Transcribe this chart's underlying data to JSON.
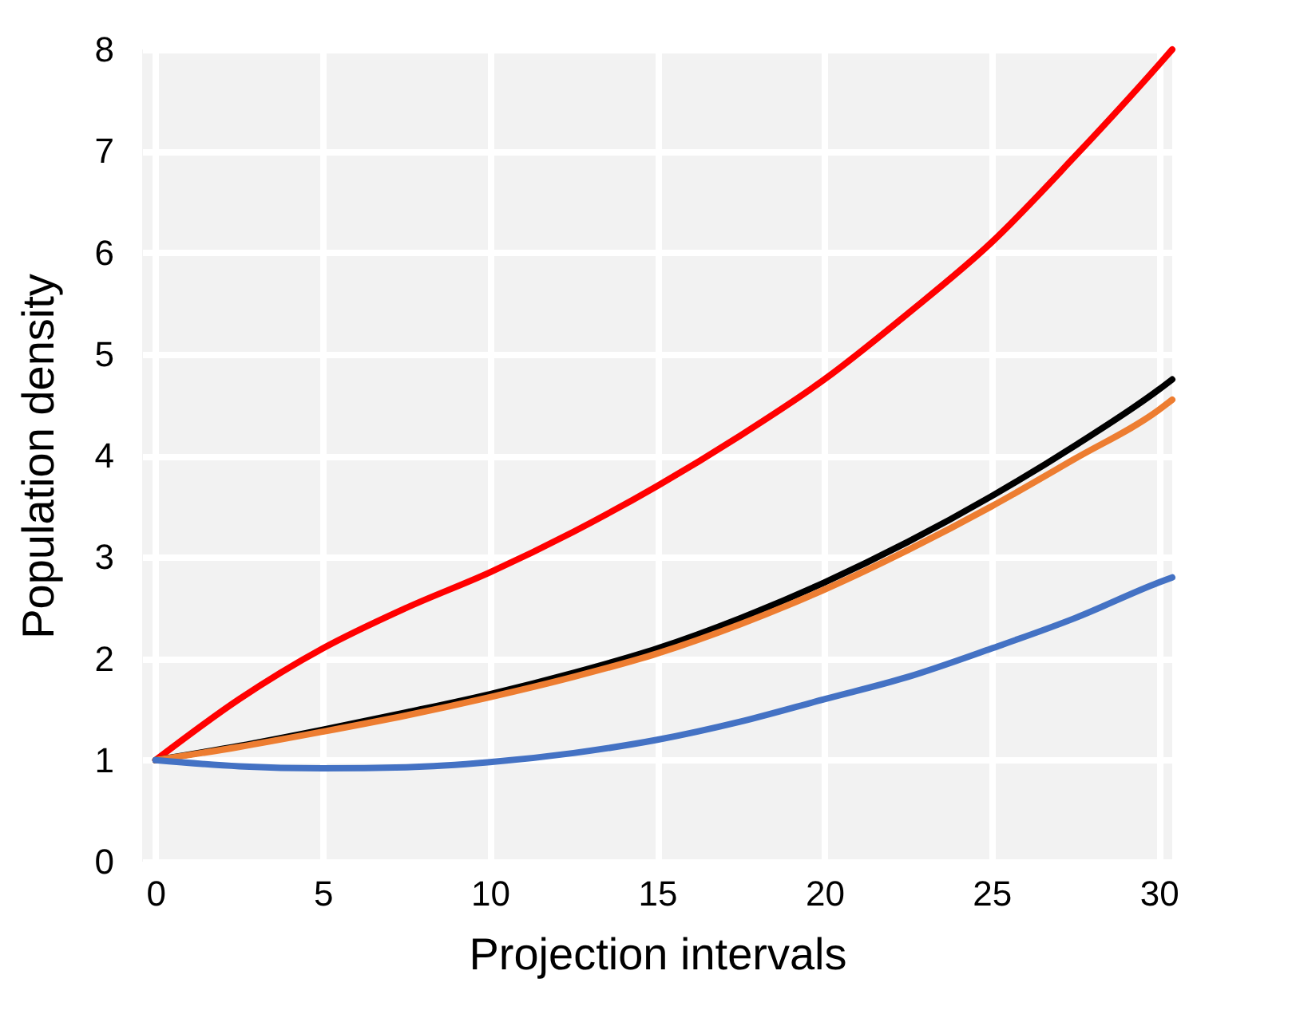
{
  "chart_data": {
    "type": "line",
    "xlabel": "Projection intervals",
    "ylabel": "Population density",
    "xlim": [
      -0.4,
      30.4
    ],
    "ylim": [
      0,
      8
    ],
    "xticks": [
      0,
      5,
      10,
      15,
      20,
      25,
      30
    ],
    "yticks": [
      0,
      1,
      2,
      3,
      4,
      5,
      6,
      7,
      8
    ],
    "grid": true,
    "marker": "none",
    "line_style": "solid",
    "x": [
      0,
      2.5,
      5,
      7.5,
      10,
      12.5,
      15,
      17.5,
      20,
      22.5,
      25,
      27.5,
      30,
      30.4
    ],
    "series": [
      {
        "color": "#ff0000",
        "values": [
          1,
          1.6,
          2.1,
          2.5,
          2.85,
          3.25,
          3.7,
          4.2,
          4.75,
          5.4,
          6.1,
          6.95,
          7.85,
          8.0
        ]
      },
      {
        "color": "#000000",
        "values": [
          1,
          1.14,
          1.3,
          1.47,
          1.65,
          1.86,
          2.1,
          2.4,
          2.75,
          3.15,
          3.6,
          4.1,
          4.65,
          4.75
        ]
      },
      {
        "color": "#ed7d31",
        "values": [
          1,
          1.13,
          1.28,
          1.44,
          1.62,
          1.82,
          2.05,
          2.34,
          2.68,
          3.07,
          3.5,
          3.97,
          4.45,
          4.55
        ]
      },
      {
        "color": "#4472c4",
        "values": [
          1,
          0.94,
          0.92,
          0.93,
          0.98,
          1.07,
          1.2,
          1.38,
          1.6,
          1.82,
          2.1,
          2.4,
          2.75,
          2.8
        ]
      }
    ]
  }
}
